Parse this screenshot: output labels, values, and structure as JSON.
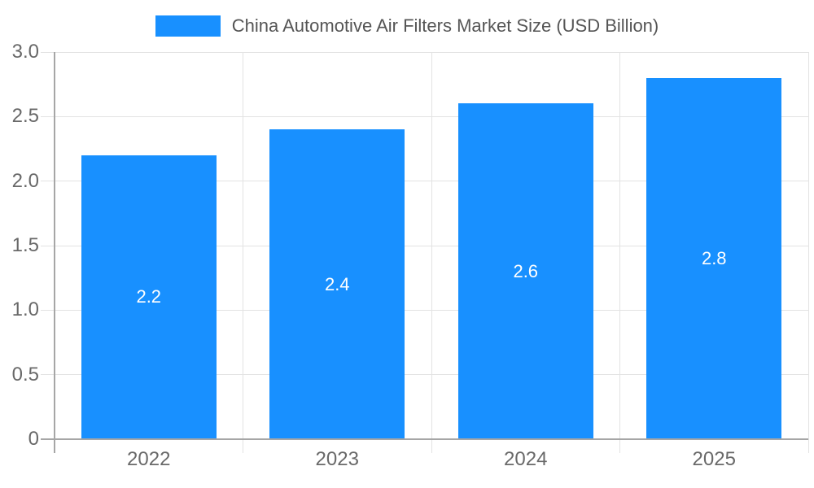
{
  "legend": {
    "label": "China Automotive Air Filters Market Size (USD Billion)"
  },
  "chart_data": {
    "type": "bar",
    "title": "China Automotive Air Filters Market Size (USD Billion)",
    "categories": [
      "2022",
      "2023",
      "2024",
      "2025"
    ],
    "values": [
      2.2,
      2.4,
      2.6,
      2.8
    ],
    "bar_labels": [
      "2.2",
      "2.4",
      "2.6",
      "2.8"
    ],
    "xlabel": "",
    "ylabel": "",
    "ylim": [
      0,
      3.0
    ],
    "y_ticks": [
      0,
      0.5,
      1.0,
      1.5,
      2.0,
      2.5,
      3.0
    ],
    "y_tick_labels": [
      "0",
      "0.5",
      "1.0",
      "1.5",
      "2.0",
      "2.5",
      "3.0"
    ],
    "grid": true,
    "legend_position": "top-center",
    "colors": {
      "bar": "#1890FF",
      "gridline": "#E3E3E3",
      "axis": "#A6A6A6",
      "tick_label": "#696969",
      "legend_text": "#555555",
      "bar_label": "#FFFFFF",
      "background": "#FFFFFF"
    }
  }
}
